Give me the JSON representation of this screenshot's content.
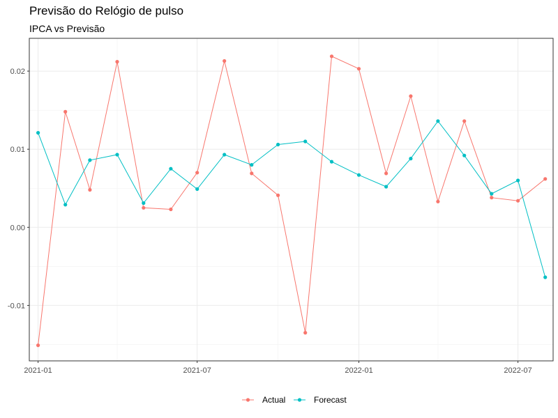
{
  "title": "Previsão do Relógio de pulso",
  "subtitle": "IPCA vs Previsão",
  "chart_data": {
    "type": "line",
    "title": "Previsão do Relógio de pulso",
    "subtitle": "IPCA vs Previsão",
    "xlabel": "",
    "ylabel": "",
    "x": [
      "2021-01",
      "2021-02",
      "2021-03",
      "2021-04",
      "2021-05",
      "2021-06",
      "2021-07",
      "2021-08",
      "2021-09",
      "2021-10",
      "2021-11",
      "2021-12",
      "2022-01",
      "2022-02",
      "2022-03",
      "2022-04",
      "2022-05",
      "2022-06",
      "2022-07",
      "2022-08"
    ],
    "xlim": [
      "2020-12-22",
      "2022-08-10"
    ],
    "ylim": [
      -0.0171,
      0.0242
    ],
    "x_ticks": [
      "2021-01",
      "2021-07",
      "2022-01",
      "2022-07"
    ],
    "y_ticks": [
      -0.01,
      0.0,
      0.01,
      0.02
    ],
    "y_tick_labels": [
      "-0.01",
      "0.00",
      "0.01",
      "0.02"
    ],
    "grid": true,
    "legend_position": "bottom",
    "series": [
      {
        "name": "Actual",
        "color": "#F8766D",
        "values": [
          -0.0151,
          0.0148,
          0.0048,
          0.0212,
          0.0025,
          0.0023,
          0.007,
          0.0213,
          0.0069,
          0.0041,
          -0.0135,
          0.0219,
          0.0203,
          0.0069,
          0.0168,
          0.0033,
          0.0136,
          0.0038,
          0.0034,
          0.0062
        ]
      },
      {
        "name": "Forecast",
        "color": "#00BFC4",
        "values": [
          0.0121,
          0.0029,
          0.0086,
          0.0093,
          0.0031,
          0.0075,
          0.0049,
          0.0093,
          0.008,
          0.0106,
          0.011,
          0.0084,
          0.0067,
          0.0052,
          0.0088,
          0.0136,
          0.0092,
          0.0043,
          0.006,
          -0.0064
        ]
      }
    ]
  }
}
